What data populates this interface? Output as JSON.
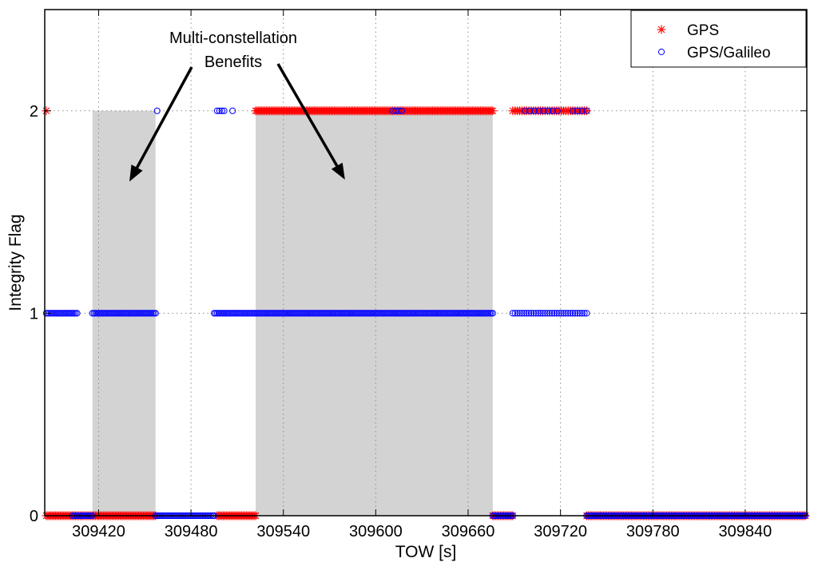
{
  "chart_data": {
    "type": "scatter",
    "title": "",
    "xlabel": "TOW [s]",
    "ylabel": "Integrity Flag",
    "xlim": [
      309385,
      309880
    ],
    "ylim": [
      0,
      2.5
    ],
    "xticks": [
      309420,
      309480,
      309540,
      309600,
      309660,
      309720,
      309780,
      309840
    ],
    "yticks": [
      0,
      1,
      2
    ],
    "grid": true,
    "legend": {
      "position": "top-right",
      "entries": [
        "GPS",
        "GPS/Galileo"
      ]
    },
    "shaded_regions": [
      {
        "x": [
          309416,
          309457
        ],
        "y": [
          0,
          2
        ]
      },
      {
        "x": [
          309522,
          309676
        ],
        "y": [
          0,
          2
        ]
      }
    ],
    "annotation": {
      "lines": [
        "Multi-constellation",
        "Benefits"
      ],
      "arrow_targets": [
        {
          "x": 309440,
          "y": 1.65
        },
        {
          "x": 309580,
          "y": 1.66
        }
      ]
    },
    "series": [
      {
        "name": "GPS",
        "marker": "asterisk",
        "color": "#ff0000",
        "segments": [
          {
            "y": 2,
            "x": [
              309386,
              309386
            ],
            "step": 1
          },
          {
            "y": 2,
            "x": [
              309522,
              309676
            ],
            "step": 1
          },
          {
            "y": 2,
            "x": [
              309689,
              309737
            ],
            "step": 1.5
          },
          {
            "y": 0,
            "x": [
              309386,
              309404
            ],
            "step": 1
          },
          {
            "y": 0,
            "x": [
              309404,
              309457
            ],
            "step": 1
          },
          {
            "y": 0,
            "x": [
              309497,
              309522
            ],
            "step": 1
          },
          {
            "y": 0,
            "x": [
              309676,
              309689
            ],
            "step": 1
          },
          {
            "y": 0,
            "x": [
              309737,
              309879
            ],
            "step": 1
          }
        ]
      },
      {
        "name": "GPS/Galileo",
        "marker": "circle",
        "color": "#0000ff",
        "segments": [
          {
            "y": 2,
            "x": [
              309458,
              309458
            ],
            "step": 1
          },
          {
            "y": 2,
            "x": [
              309497,
              309502
            ],
            "step": 1.5
          },
          {
            "y": 2,
            "x": [
              309507,
              309507
            ],
            "step": 1
          },
          {
            "y": 2,
            "x": [
              309611,
              309617
            ],
            "step": 2
          },
          {
            "y": 2,
            "x": [
              309697,
              309720
            ],
            "step": 3
          },
          {
            "y": 2,
            "x": [
              309728,
              309737
            ],
            "step": 3
          },
          {
            "y": 1,
            "x": [
              309386,
              309406
            ],
            "step": 1
          },
          {
            "y": 1,
            "x": [
              309416,
              309457
            ],
            "step": 1
          },
          {
            "y": 1,
            "x": [
              309495,
              309676
            ],
            "step": 1
          },
          {
            "y": 1,
            "x": [
              309689,
              309737
            ],
            "step": 1.5
          },
          {
            "y": 0,
            "x": [
              309403,
              309416
            ],
            "step": 1
          },
          {
            "y": 0,
            "x": [
              309457,
              309495
            ],
            "step": 1
          },
          {
            "y": 0,
            "x": [
              309676,
              309689
            ],
            "step": 1
          },
          {
            "y": 0,
            "x": [
              309737,
              309879
            ],
            "step": 1
          }
        ]
      }
    ]
  },
  "colors": {
    "gps": "#ff0000",
    "galileo": "#0000ff",
    "shade": "#d3d3d3"
  }
}
